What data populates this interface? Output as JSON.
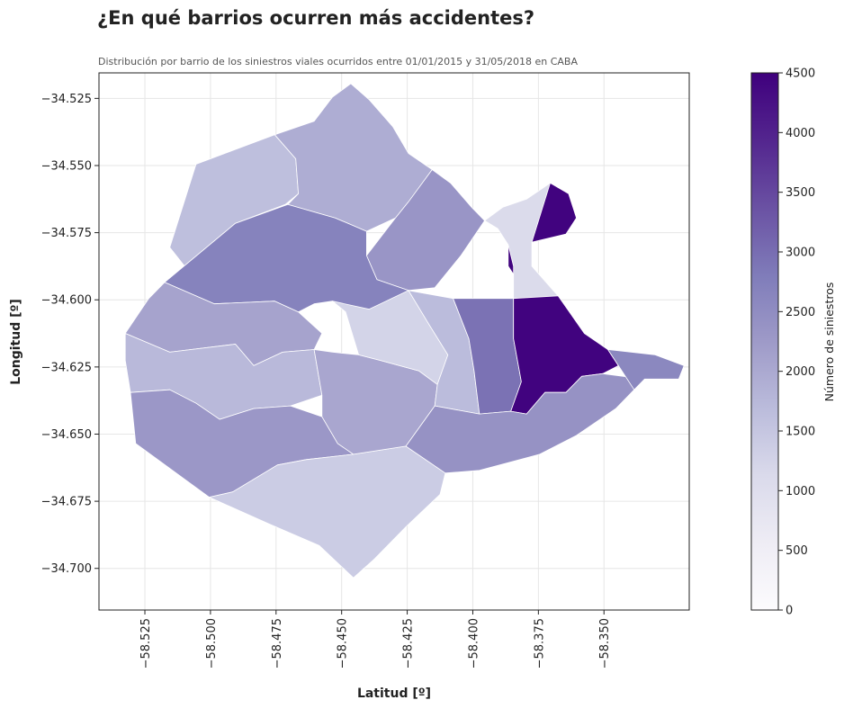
{
  "header": {
    "title": "¿En qué barrios ocurren más accidentes?",
    "subtitle": "Distribución por barrio de los siniestros viales ocurridos entre 01/01/2015 y 31/05/2018 en CABA"
  },
  "chart_data": {
    "type": "choropleth",
    "title": "¿En qué barrios ocurren más accidentes?",
    "subtitle": "Distribución por barrio de los siniestros viales ocurridos entre 01/01/2015 y 31/05/2018 en CABA",
    "xlabel": "Latitud [º]",
    "ylabel": "Longitud [º]",
    "xlim": [
      -58.5425,
      -58.3175
    ],
    "ylim": [
      -34.7155,
      -34.5155
    ],
    "xticks": [
      "−58.525",
      "−58.500",
      "−58.475",
      "−58.450",
      "−58.425",
      "−58.400",
      "−58.375",
      "−58.350"
    ],
    "xtick_values": [
      -58.525,
      -58.5,
      -58.475,
      -58.45,
      -58.425,
      -58.4,
      -58.375,
      -58.35
    ],
    "yticks": [
      "−34.525",
      "−34.550",
      "−34.575",
      "−34.600",
      "−34.625",
      "−34.650",
      "−34.675",
      "−34.700"
    ],
    "ytick_values": [
      -34.525,
      -34.55,
      -34.575,
      -34.6,
      -34.625,
      -34.65,
      -34.675,
      -34.7
    ],
    "grid": true,
    "colormap": "Purples",
    "colorbar": {
      "label": "Número de siniestros",
      "min": 0,
      "max": 4500,
      "ticks": [
        "0",
        "500",
        "1000",
        "1500",
        "2000",
        "2500",
        "3000",
        "3500",
        "4000",
        "4500"
      ],
      "tick_values": [
        0,
        500,
        1000,
        1500,
        2000,
        2500,
        3000,
        3500,
        4000,
        4500
      ]
    },
    "regions": [
      {
        "value": 1650,
        "outline": [
          [
            -58.5055,
            -34.5495
          ],
          [
            -58.4755,
            -34.5385
          ],
          [
            -58.4675,
            -34.5475
          ],
          [
            -58.4665,
            -34.5605
          ],
          [
            -58.4715,
            -34.5645
          ],
          [
            -58.4905,
            -34.5715
          ],
          [
            -58.5175,
            -34.5935
          ],
          [
            -58.4985,
            -34.6015
          ],
          [
            -58.5155,
            -34.5805
          ]
        ]
      },
      {
        "value": 1950,
        "outline": [
          [
            -58.4755,
            -34.5385
          ],
          [
            -58.4605,
            -34.5335
          ],
          [
            -58.4535,
            -34.5245
          ],
          [
            -58.4465,
            -34.5195
          ],
          [
            -58.4395,
            -34.5255
          ],
          [
            -58.4305,
            -34.5355
          ],
          [
            -58.4245,
            -34.5455
          ],
          [
            -58.4155,
            -34.5515
          ],
          [
            -58.4215,
            -34.5595
          ],
          [
            -58.4245,
            -34.5635
          ],
          [
            -58.4295,
            -34.5695
          ],
          [
            -58.4405,
            -34.5745
          ],
          [
            -58.4525,
            -34.5695
          ],
          [
            -58.4705,
            -34.5645
          ],
          [
            -58.4665,
            -34.5605
          ],
          [
            -58.4675,
            -34.5475
          ]
        ]
      },
      {
        "value": 2350,
        "outline": [
          [
            -58.4155,
            -34.5515
          ],
          [
            -58.4085,
            -34.5565
          ],
          [
            -58.4005,
            -34.5655
          ],
          [
            -58.3955,
            -34.5705
          ],
          [
            -58.4045,
            -34.5835
          ],
          [
            -58.4145,
            -34.5955
          ],
          [
            -58.4245,
            -34.5965
          ],
          [
            -58.4365,
            -34.5925
          ],
          [
            -58.4405,
            -34.5835
          ],
          [
            -58.4295,
            -34.5695
          ],
          [
            -58.4245,
            -34.5635
          ],
          [
            -58.4215,
            -34.5595
          ]
        ]
      },
      {
        "value": 2700,
        "outline": [
          [
            -58.4905,
            -34.5715
          ],
          [
            -58.4705,
            -34.5645
          ],
          [
            -58.4525,
            -34.5695
          ],
          [
            -58.4405,
            -34.5745
          ],
          [
            -58.4405,
            -34.5835
          ],
          [
            -58.4365,
            -34.5925
          ],
          [
            -58.4245,
            -34.5965
          ],
          [
            -58.4395,
            -34.6035
          ],
          [
            -58.4485,
            -34.6045
          ],
          [
            -58.4535,
            -34.6005
          ],
          [
            -58.4605,
            -34.6015
          ],
          [
            -58.4665,
            -34.6045
          ],
          [
            -58.4755,
            -34.6005
          ],
          [
            -58.4985,
            -34.6015
          ],
          [
            -58.5175,
            -34.5935
          ]
        ]
      },
      {
        "value": 2100,
        "outline": [
          [
            -58.5175,
            -34.5935
          ],
          [
            -58.4985,
            -34.6015
          ],
          [
            -58.4755,
            -34.6005
          ],
          [
            -58.4665,
            -34.6045
          ],
          [
            -58.4575,
            -34.6125
          ],
          [
            -58.4605,
            -34.6185
          ],
          [
            -58.4725,
            -34.6195
          ],
          [
            -58.4835,
            -34.6245
          ],
          [
            -58.4905,
            -34.6165
          ],
          [
            -58.5155,
            -34.6195
          ],
          [
            -58.5325,
            -34.6125
          ],
          [
            -58.5235,
            -34.5995
          ]
        ]
      },
      {
        "value": 1750,
        "outline": [
          [
            -58.5325,
            -34.6125
          ],
          [
            -58.5155,
            -34.6195
          ],
          [
            -58.4905,
            -34.6165
          ],
          [
            -58.4835,
            -34.6245
          ],
          [
            -58.4725,
            -34.6195
          ],
          [
            -58.4605,
            -34.6185
          ],
          [
            -58.4575,
            -34.6355
          ],
          [
            -58.4695,
            -34.6395
          ],
          [
            -58.4835,
            -34.6405
          ],
          [
            -58.4965,
            -34.6445
          ],
          [
            -58.5055,
            -34.6385
          ],
          [
            -58.5155,
            -34.6335
          ],
          [
            -58.5305,
            -34.6345
          ],
          [
            -58.5325,
            -34.6225
          ]
        ]
      },
      {
        "value": 2300,
        "outline": [
          [
            -58.5305,
            -34.6345
          ],
          [
            -58.5155,
            -34.6335
          ],
          [
            -58.5055,
            -34.6385
          ],
          [
            -58.4965,
            -34.6445
          ],
          [
            -58.4835,
            -34.6405
          ],
          [
            -58.4695,
            -34.6395
          ],
          [
            -58.4575,
            -34.6435
          ],
          [
            -58.4515,
            -34.6535
          ],
          [
            -58.4455,
            -34.6575
          ],
          [
            -58.4635,
            -34.6595
          ],
          [
            -58.4745,
            -34.6615
          ],
          [
            -58.4915,
            -34.6715
          ],
          [
            -58.5005,
            -34.6735
          ],
          [
            -58.5285,
            -34.6535
          ]
        ]
      },
      {
        "value": 1400,
        "outline": [
          [
            -58.5005,
            -34.6735
          ],
          [
            -58.4915,
            -34.6715
          ],
          [
            -58.4745,
            -34.6615
          ],
          [
            -58.4635,
            -34.6595
          ],
          [
            -58.4455,
            -34.6575
          ],
          [
            -58.4255,
            -34.6545
          ],
          [
            -58.4105,
            -34.6645
          ],
          [
            -58.4125,
            -34.6725
          ],
          [
            -58.4255,
            -34.6845
          ],
          [
            -58.4375,
            -34.6965
          ],
          [
            -58.4455,
            -34.7035
          ],
          [
            -58.4585,
            -34.6915
          ],
          [
            -58.4775,
            -34.6835
          ]
        ]
      },
      {
        "value": 2050,
        "outline": [
          [
            -58.4605,
            -34.6185
          ],
          [
            -58.4575,
            -34.6355
          ],
          [
            -58.4575,
            -34.6435
          ],
          [
            -58.4515,
            -34.6535
          ],
          [
            -58.4455,
            -34.6575
          ],
          [
            -58.4255,
            -34.6545
          ],
          [
            -58.4145,
            -34.6395
          ],
          [
            -58.4135,
            -34.6315
          ],
          [
            -58.4205,
            -34.6265
          ],
          [
            -58.4355,
            -34.6225
          ],
          [
            -58.4435,
            -34.6205
          ],
          [
            -58.4535,
            -34.6195
          ]
        ]
      },
      {
        "value": 1250,
        "outline": [
          [
            -58.4535,
            -34.6005
          ],
          [
            -58.4485,
            -34.6045
          ],
          [
            -58.4435,
            -34.6205
          ],
          [
            -58.4355,
            -34.6225
          ],
          [
            -58.4205,
            -34.6265
          ],
          [
            -58.4135,
            -34.6315
          ],
          [
            -58.4095,
            -34.6205
          ],
          [
            -58.4165,
            -34.6095
          ],
          [
            -58.4245,
            -34.5965
          ],
          [
            -58.4395,
            -34.6035
          ]
        ]
      },
      {
        "value": 1700,
        "outline": [
          [
            -58.4245,
            -34.5965
          ],
          [
            -58.4165,
            -34.6095
          ],
          [
            -58.4095,
            -34.6205
          ],
          [
            -58.4135,
            -34.6315
          ],
          [
            -58.4145,
            -34.6395
          ],
          [
            -58.3975,
            -34.6425
          ],
          [
            -58.3995,
            -34.6265
          ],
          [
            -58.4015,
            -34.6145
          ],
          [
            -58.4075,
            -34.5995
          ]
        ]
      },
      {
        "value": 2950,
        "outline": [
          [
            -58.4075,
            -34.5995
          ],
          [
            -58.4015,
            -34.6145
          ],
          [
            -58.3995,
            -34.6265
          ],
          [
            -58.3975,
            -34.6425
          ],
          [
            -58.3855,
            -34.6415
          ],
          [
            -58.3815,
            -34.6305
          ],
          [
            -58.3845,
            -34.6145
          ],
          [
            -58.3845,
            -34.5995
          ]
        ]
      },
      {
        "value": 4450,
        "outline": [
          [
            -58.3845,
            -34.5995
          ],
          [
            -58.3845,
            -34.6145
          ],
          [
            -58.3815,
            -34.6305
          ],
          [
            -58.3855,
            -34.6415
          ],
          [
            -58.3795,
            -34.6425
          ],
          [
            -58.3725,
            -34.6345
          ],
          [
            -58.3645,
            -34.6345
          ],
          [
            -58.3585,
            -34.6285
          ],
          [
            -58.3505,
            -34.6275
          ],
          [
            -58.3445,
            -34.6245
          ],
          [
            -58.3485,
            -34.6185
          ],
          [
            -58.3575,
            -34.6125
          ],
          [
            -58.3675,
            -34.5985
          ],
          [
            -58.3775,
            -34.5875
          ],
          [
            -58.3775,
            -34.5785
          ],
          [
            -58.3645,
            -34.5755
          ],
          [
            -58.3605,
            -34.5695
          ],
          [
            -58.3635,
            -34.5605
          ],
          [
            -58.3705,
            -34.5565
          ],
          [
            -58.3795,
            -34.5625
          ],
          [
            -58.3845,
            -34.5705
          ],
          [
            -58.3865,
            -34.5795
          ],
          [
            -58.3865,
            -34.5875
          ],
          [
            -58.3825,
            -34.5935
          ]
        ]
      },
      {
        "value": 2400,
        "outline": [
          [
            -58.3505,
            -34.6275
          ],
          [
            -58.3585,
            -34.6285
          ],
          [
            -58.3645,
            -34.6345
          ],
          [
            -58.3725,
            -34.6345
          ],
          [
            -58.3795,
            -34.6425
          ],
          [
            -58.3855,
            -34.6415
          ],
          [
            -58.3975,
            -34.6425
          ],
          [
            -58.4145,
            -34.6395
          ],
          [
            -58.4255,
            -34.6545
          ],
          [
            -58.4105,
            -34.6645
          ],
          [
            -58.3975,
            -34.6635
          ],
          [
            -58.3745,
            -34.6575
          ],
          [
            -58.3605,
            -34.6505
          ],
          [
            -58.3455,
            -34.6405
          ],
          [
            -58.3385,
            -34.6335
          ],
          [
            -58.3345,
            -34.6295
          ]
        ]
      },
      {
        "value": 2600,
        "outline": [
          [
            -58.3345,
            -34.6295
          ],
          [
            -58.3385,
            -34.6335
          ],
          [
            -58.3445,
            -34.6245
          ],
          [
            -58.3485,
            -34.6185
          ],
          [
            -58.3305,
            -34.6205
          ],
          [
            -58.3195,
            -34.6245
          ],
          [
            -58.3215,
            -34.6295
          ]
        ]
      },
      {
        "value": 1100,
        "outline": [
          [
            -58.3775,
            -34.5785
          ],
          [
            -58.3775,
            -34.5875
          ],
          [
            -58.3675,
            -34.5985
          ],
          [
            -58.3845,
            -34.5995
          ],
          [
            -58.3845,
            -34.5875
          ],
          [
            -58.3865,
            -34.5795
          ],
          [
            -58.3905,
            -34.5735
          ],
          [
            -58.3955,
            -34.5705
          ],
          [
            -58.3885,
            -34.5655
          ],
          [
            -58.3795,
            -34.5625
          ],
          [
            -58.3705,
            -34.5565
          ]
        ]
      }
    ]
  }
}
